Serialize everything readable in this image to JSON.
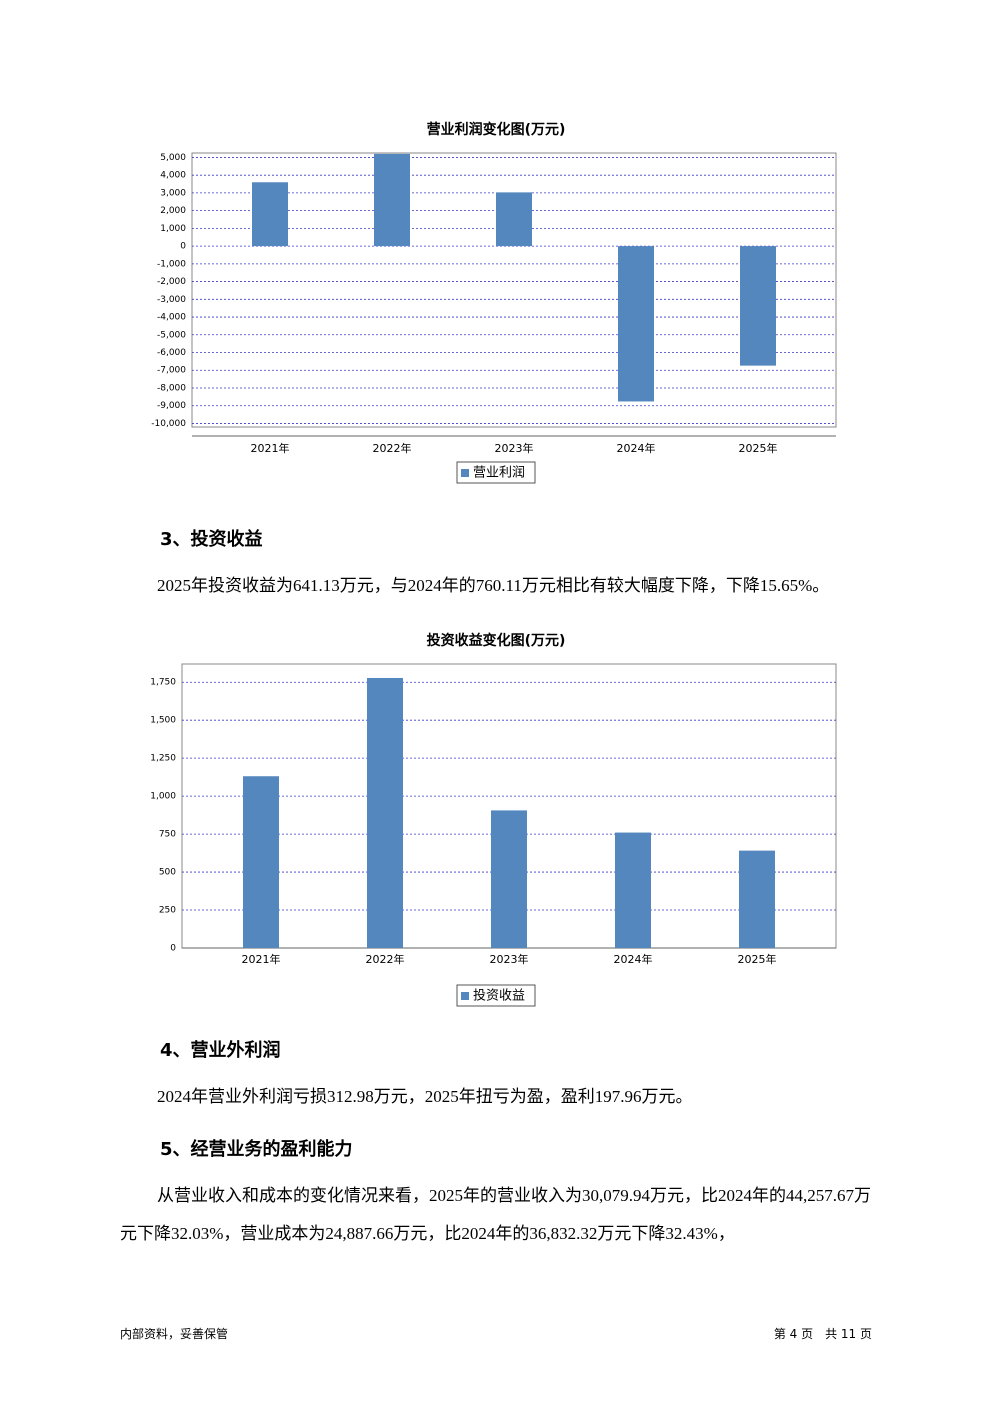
{
  "chart_data": [
    {
      "type": "bar",
      "title": "营业利润变化图(万元)",
      "categories": [
        "2021年",
        "2022年",
        "2023年",
        "2024年",
        "2025年"
      ],
      "series": [
        {
          "name": "营业利润",
          "color": "#5587bf",
          "values": [
            3600,
            5200,
            3030,
            -8760,
            -6740
          ]
        }
      ],
      "ylim": [
        -10200,
        5250
      ],
      "yticks": [
        {
          "value": 5000,
          "label": "5,000"
        },
        {
          "value": 4000,
          "label": "4,000"
        },
        {
          "value": 3000,
          "label": "3,000"
        },
        {
          "value": 2000,
          "label": "2,000"
        },
        {
          "value": 1000,
          "label": "1,000"
        },
        0,
        {
          "value": -1000,
          "label": "-1,000"
        },
        {
          "value": -2000,
          "label": "-2,000"
        },
        {
          "value": -3000,
          "label": "-3,000"
        },
        {
          "value": -4000,
          "label": "-4,000"
        },
        {
          "value": -5000,
          "label": "-5,000"
        },
        {
          "value": -6000,
          "label": "-6,000"
        },
        {
          "value": -7000,
          "label": "-7,000"
        },
        {
          "value": -8000,
          "label": "-8,000"
        },
        {
          "value": -9000,
          "label": "-9,000"
        },
        {
          "value": -10000,
          "label": "-10,000"
        }
      ],
      "grid": true
    },
    {
      "type": "bar",
      "title": "投资收益变化图(万元)",
      "categories": [
        "2021年",
        "2022年",
        "2023年",
        "2024年",
        "2025年"
      ],
      "series": [
        {
          "name": "投资收益",
          "color": "#5587bf",
          "values": [
            1131,
            1778,
            906,
            760.11,
            641.13
          ]
        }
      ],
      "ylim": [
        0,
        1870
      ],
      "yticks": [
        {
          "value": 1750,
          "label": "1,750"
        },
        {
          "value": 1500,
          "label": "1,500"
        },
        {
          "value": 1250,
          "label": "1,250"
        },
        {
          "value": 1000,
          "label": "1,000"
        },
        750,
        500,
        250,
        0
      ],
      "grid": true
    }
  ],
  "sections": [
    {
      "heading": "3、投资收益",
      "paragraphs": [
        "2025年投资收益为641.13万元，与2024年的760.11万元相比有较大幅度下降，下降15.65%。"
      ]
    },
    {
      "heading": "4、营业外利润",
      "paragraphs": [
        "2024年营业外利润亏损312.98万元，2025年扭亏为盈，盈利197.96万元。"
      ]
    },
    {
      "heading": "5、经营业务的盈利能力",
      "paragraphs": [
        "从营业收入和成本的变化情况来看，2025年的营业收入为30,079.94万元，比2024年的44,257.67万元下降32.03%，营业成本为24,887.66万元，比2024年的36,832.32万元下降32.43%，"
      ]
    }
  ],
  "footer": {
    "left": "内部资料，妥善保管",
    "right": "第 4 页　共 11 页"
  }
}
